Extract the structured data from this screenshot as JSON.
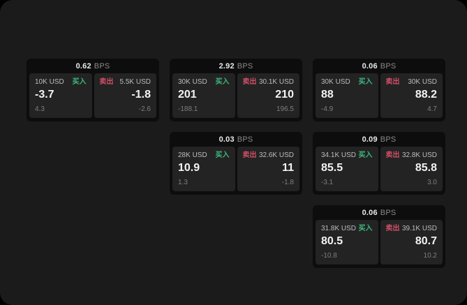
{
  "labels": {
    "bps": "BPS",
    "buy": "买入",
    "sell": "卖出"
  },
  "colors": {
    "backdrop": "#000000",
    "surface": "#1b1b1c",
    "card_bg": "#0d0d0e",
    "panel_bg": "#232324",
    "bps_value": "#e9e9e9",
    "bps_unit": "#8a8a8a",
    "size_label": "#bdbdbd",
    "buy_accent": "#3dba7c",
    "sell_accent": "#d14f66",
    "value_text": "#f3f3f3",
    "sub_text": "#7e7e7e"
  },
  "cards": [
    {
      "col": 0,
      "row": 0,
      "bps": "0.62",
      "buy": {
        "size": "10K USD",
        "value": "-3.7",
        "sub": "4.3"
      },
      "sell": {
        "size": "5.5K USD",
        "value": "-1.8",
        "sub": "-2.6"
      }
    },
    {
      "col": 1,
      "row": 0,
      "bps": "2.92",
      "buy": {
        "size": "30K USD",
        "value": "201",
        "sub": "-188.1"
      },
      "sell": {
        "size": "30.1K USD",
        "value": "210",
        "sub": "196.5"
      }
    },
    {
      "col": 2,
      "row": 0,
      "bps": "0.06",
      "buy": {
        "size": "30K USD",
        "value": "88",
        "sub": "-4.9"
      },
      "sell": {
        "size": "30K USD",
        "value": "88.2",
        "sub": "4.7"
      }
    },
    {
      "col": 1,
      "row": 1,
      "bps": "0.03",
      "buy": {
        "size": "28K USD",
        "value": "10.9",
        "sub": "1.3"
      },
      "sell": {
        "size": "32.6K USD",
        "value": "11",
        "sub": "-1.8"
      }
    },
    {
      "col": 2,
      "row": 1,
      "bps": "0.09",
      "buy": {
        "size": "34.1K USD",
        "value": "85.5",
        "sub": "-3.1"
      },
      "sell": {
        "size": "32.8K USD",
        "value": "85.8",
        "sub": "3.0"
      }
    },
    {
      "col": 2,
      "row": 2,
      "bps": "0.06",
      "buy": {
        "size": "31.8K USD",
        "value": "80.5",
        "sub": "-10.8"
      },
      "sell": {
        "size": "39.1K USD",
        "value": "80.7",
        "sub": "10.2"
      }
    }
  ]
}
